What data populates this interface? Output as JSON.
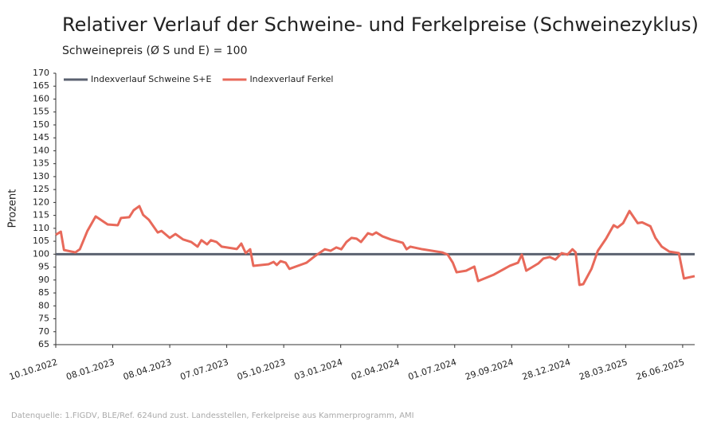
{
  "chart_data": {
    "type": "line",
    "title": "Relativer Verlauf der Schweine- und Ferkelpreise (Schweinezyklus)",
    "subtitle": "Schweinepreis (Ø S und E) = 100",
    "y_label": "Prozent",
    "source": "Datenquelle: 1.FIGDV, BLE/Ref. 624und zust. Landesstellen, Ferkelpreise aus Kammerprogramm, AMI",
    "legend": "top-left",
    "xlim": [
      "2022-10-10",
      "2025-07-15"
    ],
    "xticks": [
      {
        "value": "2022-10-10",
        "label": "10.10.2022"
      },
      {
        "value": "2023-01-08",
        "label": "08.01.2023"
      },
      {
        "value": "2023-04-08",
        "label": "08.04.2023"
      },
      {
        "value": "2023-07-07",
        "label": "07.07.2023"
      },
      {
        "value": "2023-10-05",
        "label": "05.10.2023"
      },
      {
        "value": "2024-01-03",
        "label": "03.01.2024"
      },
      {
        "value": "2024-04-02",
        "label": "02.04.2024"
      },
      {
        "value": "2024-07-01",
        "label": "01.07.2024"
      },
      {
        "value": "2024-09-29",
        "label": "29.09.2024"
      },
      {
        "value": "2024-12-28",
        "label": "28.12.2024"
      },
      {
        "value": "2025-03-28",
        "label": "28.03.2025"
      },
      {
        "value": "2025-06-26",
        "label": "26.06.2025"
      }
    ],
    "ylim": [
      65,
      170
    ],
    "yticks": [
      65,
      70,
      75,
      80,
      85,
      90,
      95,
      100,
      105,
      110,
      115,
      120,
      125,
      130,
      135,
      140,
      145,
      150,
      155,
      160,
      165,
      170
    ],
    "series": [
      {
        "name": "Indexverlauf Schweine S+E",
        "color": "#5b6270",
        "x": [
          "2022-10-10",
          "2025-07-15"
        ],
        "values": [
          100,
          100
        ]
      },
      {
        "name": "Indexverlauf Ferkel",
        "color": "#e8695a",
        "x": [
          "2022-10-10",
          "2022-10-18",
          "2022-10-23",
          "2022-11-10",
          "2022-11-17",
          "2022-11-29",
          "2022-12-12",
          "2022-12-31",
          "2023-01-16",
          "2023-01-21",
          "2023-02-03",
          "2023-02-10",
          "2023-02-19",
          "2023-02-25",
          "2023-03-06",
          "2023-03-20",
          "2023-03-26",
          "2023-04-08",
          "2023-04-17",
          "2023-04-29",
          "2023-05-12",
          "2023-05-22",
          "2023-05-28",
          "2023-06-06",
          "2023-06-12",
          "2023-06-21",
          "2023-06-29",
          "2023-07-23",
          "2023-07-30",
          "2023-08-06",
          "2023-08-13",
          "2023-08-18",
          "2023-09-11",
          "2023-09-19",
          "2023-09-24",
          "2023-09-30",
          "2023-10-08",
          "2023-10-14",
          "2023-11-10",
          "2023-11-23",
          "2023-12-09",
          "2023-12-18",
          "2023-12-27",
          "2024-01-04",
          "2024-01-12",
          "2024-01-20",
          "2024-01-28",
          "2024-02-04",
          "2024-02-15",
          "2024-02-22",
          "2024-02-28",
          "2024-03-09",
          "2024-03-22",
          "2024-04-10",
          "2024-04-16",
          "2024-04-22",
          "2024-05-11",
          "2024-06-11",
          "2024-06-20",
          "2024-06-28",
          "2024-07-04",
          "2024-07-19",
          "2024-08-01",
          "2024-08-07",
          "2024-09-01",
          "2024-09-26",
          "2024-10-09",
          "2024-10-15",
          "2024-10-22",
          "2024-11-10",
          "2024-11-18",
          "2024-11-28",
          "2024-12-07",
          "2024-12-17",
          "2024-12-26",
          "2025-01-03",
          "2025-01-08",
          "2025-01-14",
          "2025-01-20",
          "2025-02-02",
          "2025-02-12",
          "2025-02-25",
          "2025-03-09",
          "2025-03-15",
          "2025-03-24",
          "2025-04-03",
          "2025-04-16",
          "2025-04-23",
          "2025-05-06",
          "2025-05-14",
          "2025-05-24",
          "2025-06-05",
          "2025-06-20",
          "2025-06-28",
          "2025-07-15"
        ],
        "values": [
          107.5,
          108.7,
          101.6,
          100.7,
          101.9,
          109,
          114.6,
          111.5,
          111.2,
          114,
          114.3,
          117,
          118.6,
          115.2,
          113.3,
          108.4,
          109,
          106.3,
          107.8,
          105.7,
          104.7,
          102.9,
          105.4,
          103.8,
          105.4,
          104.7,
          102.9,
          102,
          104.1,
          100.4,
          101.9,
          95.5,
          96.1,
          97,
          95.8,
          97.3,
          96.7,
          94.3,
          96.7,
          99.2,
          101.9,
          101.3,
          102.6,
          101.9,
          104.7,
          106.3,
          106,
          104.7,
          108.1,
          107.5,
          108.4,
          106.9,
          105.7,
          104.4,
          101.9,
          102.9,
          101.9,
          100.7,
          99.8,
          96.7,
          93,
          93.6,
          95.2,
          89.6,
          92.1,
          95.5,
          96.7,
          99.8,
          93.6,
          96.4,
          98.3,
          98.9,
          97.9,
          100.4,
          99.8,
          101.9,
          100.7,
          88.1,
          88.4,
          94.3,
          101.3,
          106,
          111.2,
          110.3,
          112,
          116.7,
          112,
          112.3,
          110.8,
          106.3,
          102.9,
          101,
          100.4,
          90.6,
          91.5
        ]
      }
    ]
  }
}
